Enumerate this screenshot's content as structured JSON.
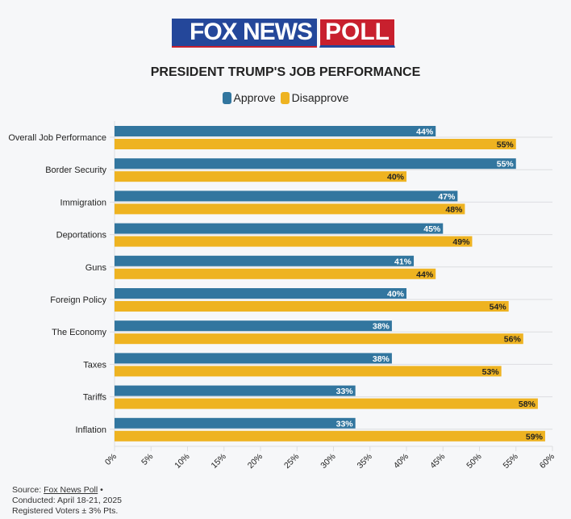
{
  "logo": {
    "left_text": "FOX NEWS",
    "right_text": "POLL"
  },
  "colors": {
    "approve": "#32769f",
    "disapprove": "#eeb321",
    "grid": "#dcdde0",
    "logo_blue": "#24479a",
    "logo_red": "#c8202e"
  },
  "chart_data": {
    "type": "bar",
    "orientation": "horizontal",
    "title": "PRESIDENT TRUMP'S JOB PERFORMANCE",
    "categories": [
      "Overall Job Performance",
      "Border Security",
      "Immigration",
      "Deportations",
      "Guns",
      "Foreign Policy",
      "The Economy",
      "Taxes",
      "Tariffs",
      "Inflation"
    ],
    "series": [
      {
        "name": "Approve",
        "values": [
          44,
          55,
          47,
          45,
          41,
          40,
          38,
          38,
          33,
          33
        ]
      },
      {
        "name": "Disapprove",
        "values": [
          55,
          40,
          48,
          49,
          44,
          54,
          56,
          53,
          58,
          59
        ]
      }
    ],
    "xlim": [
      0,
      60
    ],
    "xticks": [
      "0%",
      "5%",
      "10%",
      "15%",
      "20%",
      "25%",
      "30%",
      "35%",
      "40%",
      "45%",
      "50%",
      "55%",
      "60%"
    ],
    "xlabel": "",
    "ylabel": "",
    "legend": "top-center",
    "value_suffix": "%"
  },
  "footer": {
    "source_label": "Source: ",
    "source_link": "Fox News Poll",
    "source_bullet": " •",
    "conducted": "Conducted: April 18-21, 2025",
    "voters": "Registered Voters ± 3% Pts."
  }
}
